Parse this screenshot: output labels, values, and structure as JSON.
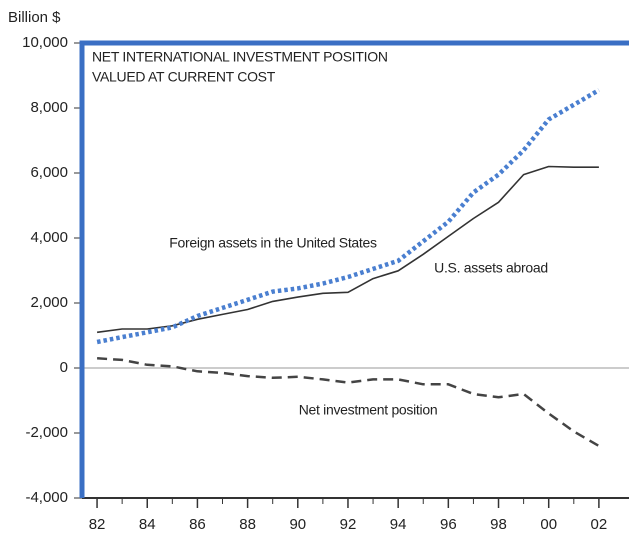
{
  "chart_data": {
    "type": "line",
    "y_unit_label": "Billion $",
    "title_lines": [
      "NET INTERNATIONAL INVESTMENT POSITION",
      "VALUED  AT CURRENT COST"
    ],
    "x": [
      1982,
      1983,
      1984,
      1985,
      1986,
      1987,
      1988,
      1989,
      1990,
      1991,
      1992,
      1993,
      1994,
      1995,
      1996,
      1997,
      1998,
      1999,
      2000,
      2001,
      2002
    ],
    "series": [
      {
        "name": "U.S.  assets abroad",
        "color": "#333333",
        "style": "solid",
        "values": [
          1100,
          1200,
          1200,
          1300,
          1500,
          1650,
          1800,
          2050,
          2180,
          2300,
          2330,
          2750,
          2990,
          3500,
          4050,
          4600,
          5100,
          5950,
          6200,
          6180,
          6180
        ]
      },
      {
        "name": "Foreign assets in the United States",
        "color": "#4a7fd0",
        "style": "dotted",
        "values": [
          800,
          950,
          1100,
          1250,
          1600,
          1850,
          2100,
          2350,
          2450,
          2600,
          2800,
          3050,
          3300,
          3900,
          4500,
          5400,
          5950,
          6700,
          7650,
          8100,
          8550
        ]
      },
      {
        "name": "Net investment position",
        "color": "#444444",
        "style": "dashed",
        "values": [
          300,
          250,
          100,
          50,
          -100,
          -150,
          -250,
          -300,
          -270,
          -350,
          -450,
          -350,
          -350,
          -500,
          -500,
          -800,
          -900,
          -800,
          -1400,
          -1950,
          -2400
        ]
      }
    ],
    "xlim": [
      1981.4,
      2003.2
    ],
    "xticks": [
      {
        "value": 1982,
        "label": "82"
      },
      {
        "value": 1984,
        "label": "84"
      },
      {
        "value": 1986,
        "label": "86"
      },
      {
        "value": 1988,
        "label": "88"
      },
      {
        "value": 1990,
        "label": "90"
      },
      {
        "value": 1992,
        "label": "92"
      },
      {
        "value": 1994,
        "label": "94"
      },
      {
        "value": 1996,
        "label": "96"
      },
      {
        "value": 1998,
        "label": "98"
      },
      {
        "value": 2000,
        "label": "00"
      },
      {
        "value": 2002,
        "label": "02"
      }
    ],
    "ylim": [
      -4000,
      10000
    ],
    "yticks": [
      {
        "value": -4000,
        "label": "-4,000"
      },
      {
        "value": -2000,
        "label": "-2,000"
      },
      0,
      {
        "value": 2000,
        "label": "2,000"
      },
      {
        "value": 4000,
        "label": "4,000"
      },
      {
        "value": 6000,
        "label": "6,000"
      },
      {
        "value": 8000,
        "label": "8,000"
      },
      {
        "value": 10000,
        "label": "10,000"
      }
    ]
  }
}
